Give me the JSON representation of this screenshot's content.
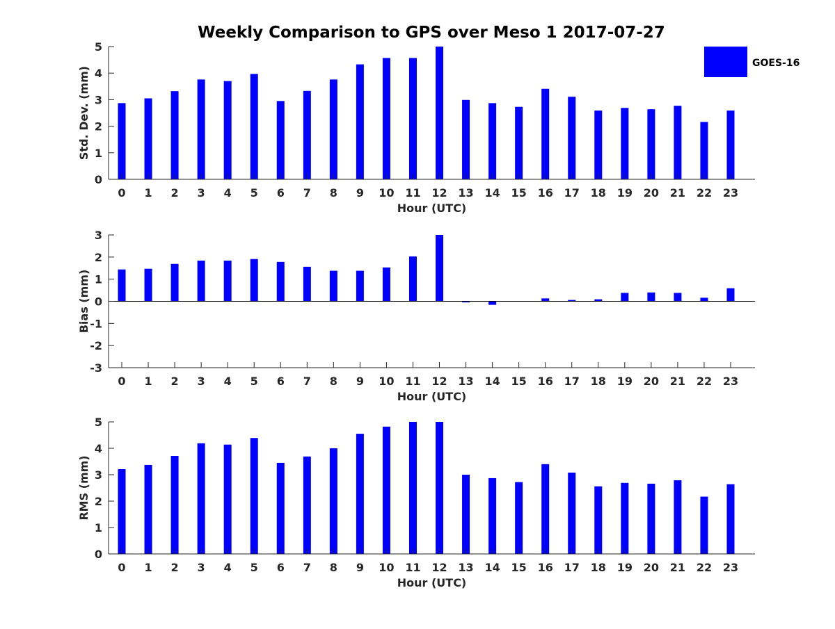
{
  "title": "Weekly Comparison to GPS over Meso 1 2017-07-27",
  "legend": {
    "label": "GOES-16",
    "color": "#0000ff",
    "placement": "top-right"
  },
  "colors": {
    "bar": "#0000ff",
    "axis": "#262626"
  },
  "chart_data": [
    {
      "type": "bar",
      "ylabel": "Std. Dev. (mm)",
      "xlabel": "Hour (UTC)",
      "ylim": [
        0,
        5
      ],
      "yticks": [
        0,
        1,
        2,
        3,
        4,
        5
      ],
      "categories": [
        "0",
        "1",
        "2",
        "3",
        "4",
        "5",
        "6",
        "7",
        "8",
        "9",
        "10",
        "11",
        "12",
        "13",
        "14",
        "15",
        "16",
        "17",
        "18",
        "19",
        "20",
        "21",
        "22",
        "23"
      ],
      "series": [
        {
          "name": "GOES-16",
          "values": [
            2.87,
            3.05,
            3.32,
            3.76,
            3.7,
            3.97,
            2.95,
            3.33,
            3.76,
            4.33,
            4.57,
            4.57,
            5.0,
            2.99,
            2.87,
            2.73,
            3.41,
            3.11,
            2.59,
            2.69,
            2.64,
            2.77,
            2.16,
            2.59
          ]
        }
      ]
    },
    {
      "type": "bar",
      "ylabel": "Bias (mm)",
      "xlabel": "Hour (UTC)",
      "ylim": [
        -3,
        3
      ],
      "yticks": [
        -3,
        -2,
        -1,
        0,
        1,
        2,
        3
      ],
      "categories": [
        "0",
        "1",
        "2",
        "3",
        "4",
        "5",
        "6",
        "7",
        "8",
        "9",
        "10",
        "11",
        "12",
        "13",
        "14",
        "15",
        "16",
        "17",
        "18",
        "19",
        "20",
        "21",
        "22",
        "23"
      ],
      "series": [
        {
          "name": "GOES-16",
          "values": [
            1.44,
            1.47,
            1.69,
            1.84,
            1.84,
            1.91,
            1.78,
            1.56,
            1.38,
            1.38,
            1.53,
            2.03,
            3.0,
            -0.05,
            -0.16,
            0.0,
            0.13,
            0.06,
            0.09,
            0.38,
            0.4,
            0.38,
            0.16,
            0.59
          ]
        }
      ]
    },
    {
      "type": "bar",
      "ylabel": "RMS (mm)",
      "xlabel": "Hour (UTC)",
      "ylim": [
        0,
        5
      ],
      "yticks": [
        0,
        1,
        2,
        3,
        4,
        5
      ],
      "categories": [
        "0",
        "1",
        "2",
        "3",
        "4",
        "5",
        "6",
        "7",
        "8",
        "9",
        "10",
        "11",
        "12",
        "13",
        "14",
        "15",
        "16",
        "17",
        "18",
        "19",
        "20",
        "21",
        "22",
        "23"
      ],
      "series": [
        {
          "name": "GOES-16",
          "values": [
            3.21,
            3.37,
            3.71,
            4.19,
            4.14,
            4.39,
            3.45,
            3.69,
            4.0,
            4.55,
            4.82,
            5.0,
            5.0,
            3.0,
            2.87,
            2.72,
            3.4,
            3.08,
            2.56,
            2.69,
            2.66,
            2.79,
            2.17,
            2.64
          ]
        }
      ]
    }
  ]
}
